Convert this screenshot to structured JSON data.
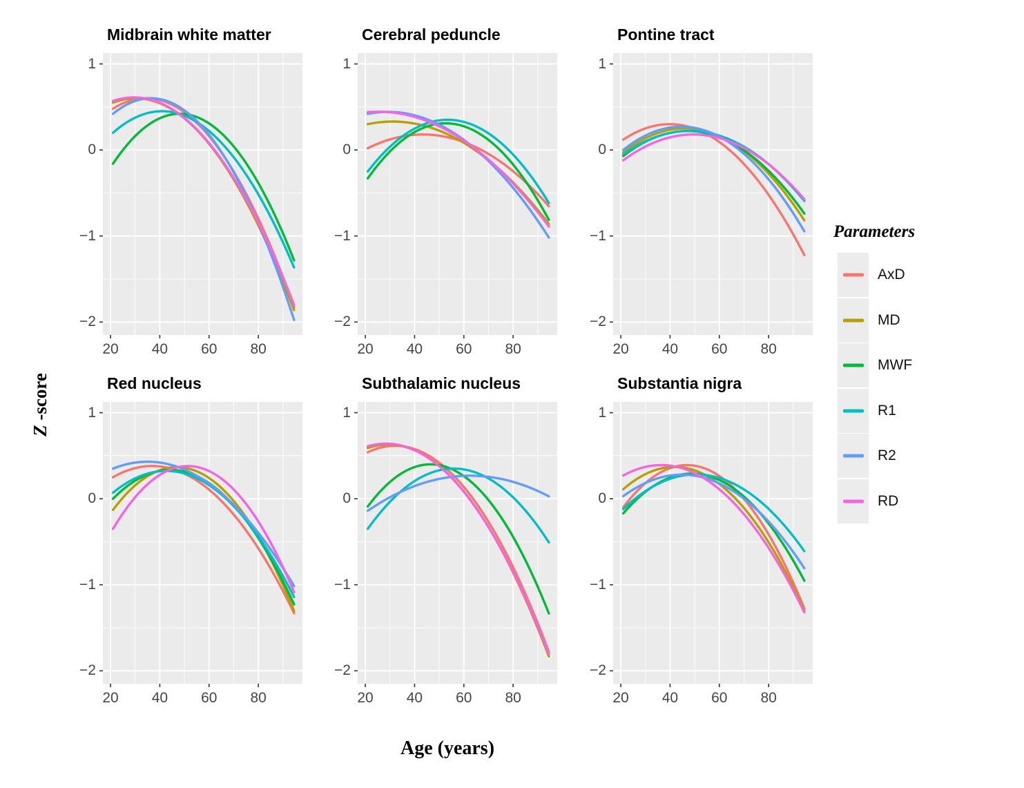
{
  "axis": {
    "y_label_z": "Z",
    "y_label_rest": " -score",
    "x_label": "Age (years)"
  },
  "legend": {
    "title": "Parameters",
    "entries": [
      {
        "label": "AxD",
        "color": "#F8766D"
      },
      {
        "label": "MD",
        "color": "#B79F00"
      },
      {
        "label": "MWF",
        "color": "#00BA38"
      },
      {
        "label": "R1",
        "color": "#00BFC4"
      },
      {
        "label": "R2",
        "color": "#619CFF"
      },
      {
        "label": "RD",
        "color": "#F564E3"
      }
    ]
  },
  "chart_data": {
    "type": "line",
    "layout": "2x3 small multiples, shared axes",
    "curve_model": "quadratic through anchor points [age, z]",
    "xlabel": "Age (years)",
    "ylabel": "Z -score",
    "x_ticks": [
      20,
      40,
      60,
      80
    ],
    "x_minor_ticks": [
      30,
      50,
      70,
      90
    ],
    "x_domain": [
      16.9,
      97.9
    ],
    "y_ticks": [
      1,
      0,
      -1,
      -2
    ],
    "y_tick_labels": [
      "1",
      "0",
      "−1",
      "−2"
    ],
    "y_minor_ticks": [
      0.5,
      -0.5,
      -1.5
    ],
    "y_domain": [
      -2.15,
      1.125
    ],
    "grid": "white major+minor gridlines on #EBEBEB panel",
    "legend_position": "right",
    "series_order": [
      "AxD",
      "MD",
      "MWF",
      "R1",
      "R2",
      "RD"
    ],
    "series_colors": {
      "AxD": "#F8766D",
      "MD": "#B79F00",
      "MWF": "#00BA38",
      "R1": "#00BFC4",
      "R2": "#619CFF",
      "RD": "#F564E3"
    },
    "panels": [
      {
        "title": "Midbrain white matter",
        "series": [
          {
            "name": "AxD",
            "anchors": [
              [
                21,
                0.48
              ],
              [
                33,
                0.6
              ],
              [
                95,
                -1.87
              ]
            ]
          },
          {
            "name": "MD",
            "anchors": [
              [
                21,
                0.55
              ],
              [
                31,
                0.6
              ],
              [
                95,
                -1.9
              ]
            ]
          },
          {
            "name": "MWF",
            "anchors": [
              [
                21,
                -0.16
              ],
              [
                47,
                0.42
              ],
              [
                95,
                -1.32
              ]
            ]
          },
          {
            "name": "R1",
            "anchors": [
              [
                21,
                0.2
              ],
              [
                42,
                0.45
              ],
              [
                95,
                -1.4
              ]
            ]
          },
          {
            "name": "R2",
            "anchors": [
              [
                21,
                0.42
              ],
              [
                35,
                0.6
              ],
              [
                95,
                -2.02
              ]
            ]
          },
          {
            "name": "RD",
            "anchors": [
              [
                21,
                0.57
              ],
              [
                31,
                0.61
              ],
              [
                95,
                -1.84
              ]
            ]
          }
        ]
      },
      {
        "title": "Cerebral peduncle",
        "series": [
          {
            "name": "AxD",
            "anchors": [
              [
                21,
                0.02
              ],
              [
                44,
                0.18
              ],
              [
                95,
                -0.67
              ]
            ]
          },
          {
            "name": "MD",
            "anchors": [
              [
                21,
                0.3
              ],
              [
                30,
                0.33
              ],
              [
                95,
                -0.88
              ]
            ]
          },
          {
            "name": "MWF",
            "anchors": [
              [
                21,
                -0.33
              ],
              [
                52,
                0.31
              ],
              [
                95,
                -0.84
              ]
            ]
          },
          {
            "name": "R1",
            "anchors": [
              [
                21,
                -0.25
              ],
              [
                52,
                0.35
              ],
              [
                95,
                -0.64
              ]
            ]
          },
          {
            "name": "R2",
            "anchors": [
              [
                21,
                0.42
              ],
              [
                32,
                0.44
              ],
              [
                95,
                -1.04
              ]
            ]
          },
          {
            "name": "RD",
            "anchors": [
              [
                21,
                0.44
              ],
              [
                25,
                0.445
              ],
              [
                95,
                -0.91
              ]
            ]
          }
        ]
      },
      {
        "title": "Pontine tract",
        "series": [
          {
            "name": "AxD",
            "anchors": [
              [
                21,
                0.12
              ],
              [
                40,
                0.3
              ],
              [
                95,
                -1.25
              ]
            ]
          },
          {
            "name": "MD",
            "anchors": [
              [
                21,
                -0.03
              ],
              [
                45,
                0.25
              ],
              [
                95,
                -0.84
              ]
            ]
          },
          {
            "name": "MWF",
            "anchors": [
              [
                21,
                -0.07
              ],
              [
                47,
                0.22
              ],
              [
                95,
                -0.76
              ]
            ]
          },
          {
            "name": "R1",
            "anchors": [
              [
                21,
                -0.05
              ],
              [
                46,
                0.22
              ],
              [
                95,
                -0.61
              ]
            ]
          },
          {
            "name": "R2",
            "anchors": [
              [
                21,
                0.0
              ],
              [
                43,
                0.27
              ],
              [
                95,
                -0.97
              ]
            ]
          },
          {
            "name": "RD",
            "anchors": [
              [
                21,
                -0.12
              ],
              [
                49,
                0.18
              ],
              [
                95,
                -0.59
              ]
            ]
          }
        ]
      },
      {
        "title": "Red nucleus",
        "series": [
          {
            "name": "AxD",
            "anchors": [
              [
                21,
                0.25
              ],
              [
                38,
                0.38
              ],
              [
                95,
                -1.36
              ]
            ]
          },
          {
            "name": "MD",
            "anchors": [
              [
                21,
                -0.13
              ],
              [
                50,
                0.36
              ],
              [
                95,
                -1.34
              ]
            ]
          },
          {
            "name": "MWF",
            "anchors": [
              [
                21,
                0.0
              ],
              [
                47,
                0.33
              ],
              [
                95,
                -1.26
              ]
            ]
          },
          {
            "name": "R1",
            "anchors": [
              [
                21,
                0.07
              ],
              [
                45,
                0.32
              ],
              [
                95,
                -1.17
              ]
            ]
          },
          {
            "name": "R2",
            "anchors": [
              [
                21,
                0.35
              ],
              [
                34,
                0.43
              ],
              [
                95,
                -1.04
              ]
            ]
          },
          {
            "name": "RD",
            "anchors": [
              [
                21,
                -0.35
              ],
              [
                55,
                0.37
              ],
              [
                95,
                -1.12
              ]
            ]
          }
        ]
      },
      {
        "title": "Subthalamic nucleus",
        "series": [
          {
            "name": "AxD",
            "anchors": [
              [
                21,
                0.54
              ],
              [
                31,
                0.615
              ],
              [
                95,
                -1.82
              ]
            ]
          },
          {
            "name": "MD",
            "anchors": [
              [
                21,
                0.59
              ],
              [
                29,
                0.63
              ],
              [
                95,
                -1.87
              ]
            ]
          },
          {
            "name": "MWF",
            "anchors": [
              [
                21,
                -0.09
              ],
              [
                46,
                0.4
              ],
              [
                95,
                -1.37
              ]
            ]
          },
          {
            "name": "R1",
            "anchors": [
              [
                21,
                -0.35
              ],
              [
                57,
                0.35
              ],
              [
                95,
                -0.53
              ]
            ]
          },
          {
            "name": "R2",
            "anchors": [
              [
                21,
                -0.14
              ],
              [
                66,
                0.265
              ],
              [
                95,
                0.02
              ]
            ]
          },
          {
            "name": "RD",
            "anchors": [
              [
                21,
                0.61
              ],
              [
                28,
                0.64
              ],
              [
                95,
                -1.84
              ]
            ]
          }
        ]
      },
      {
        "title": "Substantia nigra",
        "series": [
          {
            "name": "AxD",
            "anchors": [
              [
                21,
                -0.1
              ],
              [
                48,
                0.39
              ],
              [
                95,
                -1.31
              ]
            ]
          },
          {
            "name": "MD",
            "anchors": [
              [
                21,
                0.11
              ],
              [
                42,
                0.37
              ],
              [
                95,
                -1.33
              ]
            ]
          },
          {
            "name": "MWF",
            "anchors": [
              [
                21,
                -0.17
              ],
              [
                47,
                0.29
              ],
              [
                95,
                -0.98
              ]
            ]
          },
          {
            "name": "R1",
            "anchors": [
              [
                21,
                -0.12
              ],
              [
                48,
                0.28
              ],
              [
                95,
                -0.63
              ]
            ]
          },
          {
            "name": "R2",
            "anchors": [
              [
                21,
                0.03
              ],
              [
                44,
                0.28
              ],
              [
                95,
                -0.83
              ]
            ]
          },
          {
            "name": "RD",
            "anchors": [
              [
                21,
                0.27
              ],
              [
                35,
                0.39
              ],
              [
                95,
                -1.35
              ]
            ]
          }
        ]
      }
    ]
  }
}
